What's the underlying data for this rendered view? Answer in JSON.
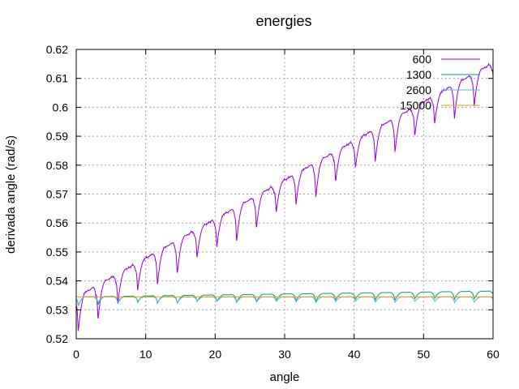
{
  "chart_data": {
    "type": "line",
    "title": "energies",
    "xlabel": "angle",
    "ylabel": "derivada angle (rad/s)",
    "xlim": [
      0,
      60
    ],
    "ylim": [
      0.52,
      0.62
    ],
    "xticks": [
      "0",
      "10",
      "20",
      "30",
      "40",
      "50",
      "60"
    ],
    "yticks": [
      "0.52",
      "0.53",
      "0.54",
      "0.55",
      "0.56",
      "0.57",
      "0.58",
      "0.59",
      "0.6",
      "0.61",
      "0.62"
    ],
    "grid": true,
    "legend_position": "top-right",
    "period": 2.85,
    "series": [
      {
        "name": "600",
        "color": "#9400d3",
        "baseline_start": 0.5345,
        "baseline_end": 0.6155,
        "dip_depth": 0.011,
        "first_low": 0.5225
      },
      {
        "name": "1300",
        "color": "#009e73",
        "baseline_start": 0.5345,
        "baseline_end": 0.5365,
        "dip_depth": 0.0025,
        "first_low": 0.5315
      },
      {
        "name": "2600",
        "color": "#56b4e9",
        "baseline_start": 0.5345,
        "baseline_end": 0.5345,
        "dip_depth": 0.0018,
        "first_low": 0.5315
      },
      {
        "name": "15000",
        "color": "#e69f00",
        "baseline_start": 0.5345,
        "baseline_end": 0.5345,
        "dip_depth": 0.0,
        "first_low": 0.5345
      }
    ]
  }
}
